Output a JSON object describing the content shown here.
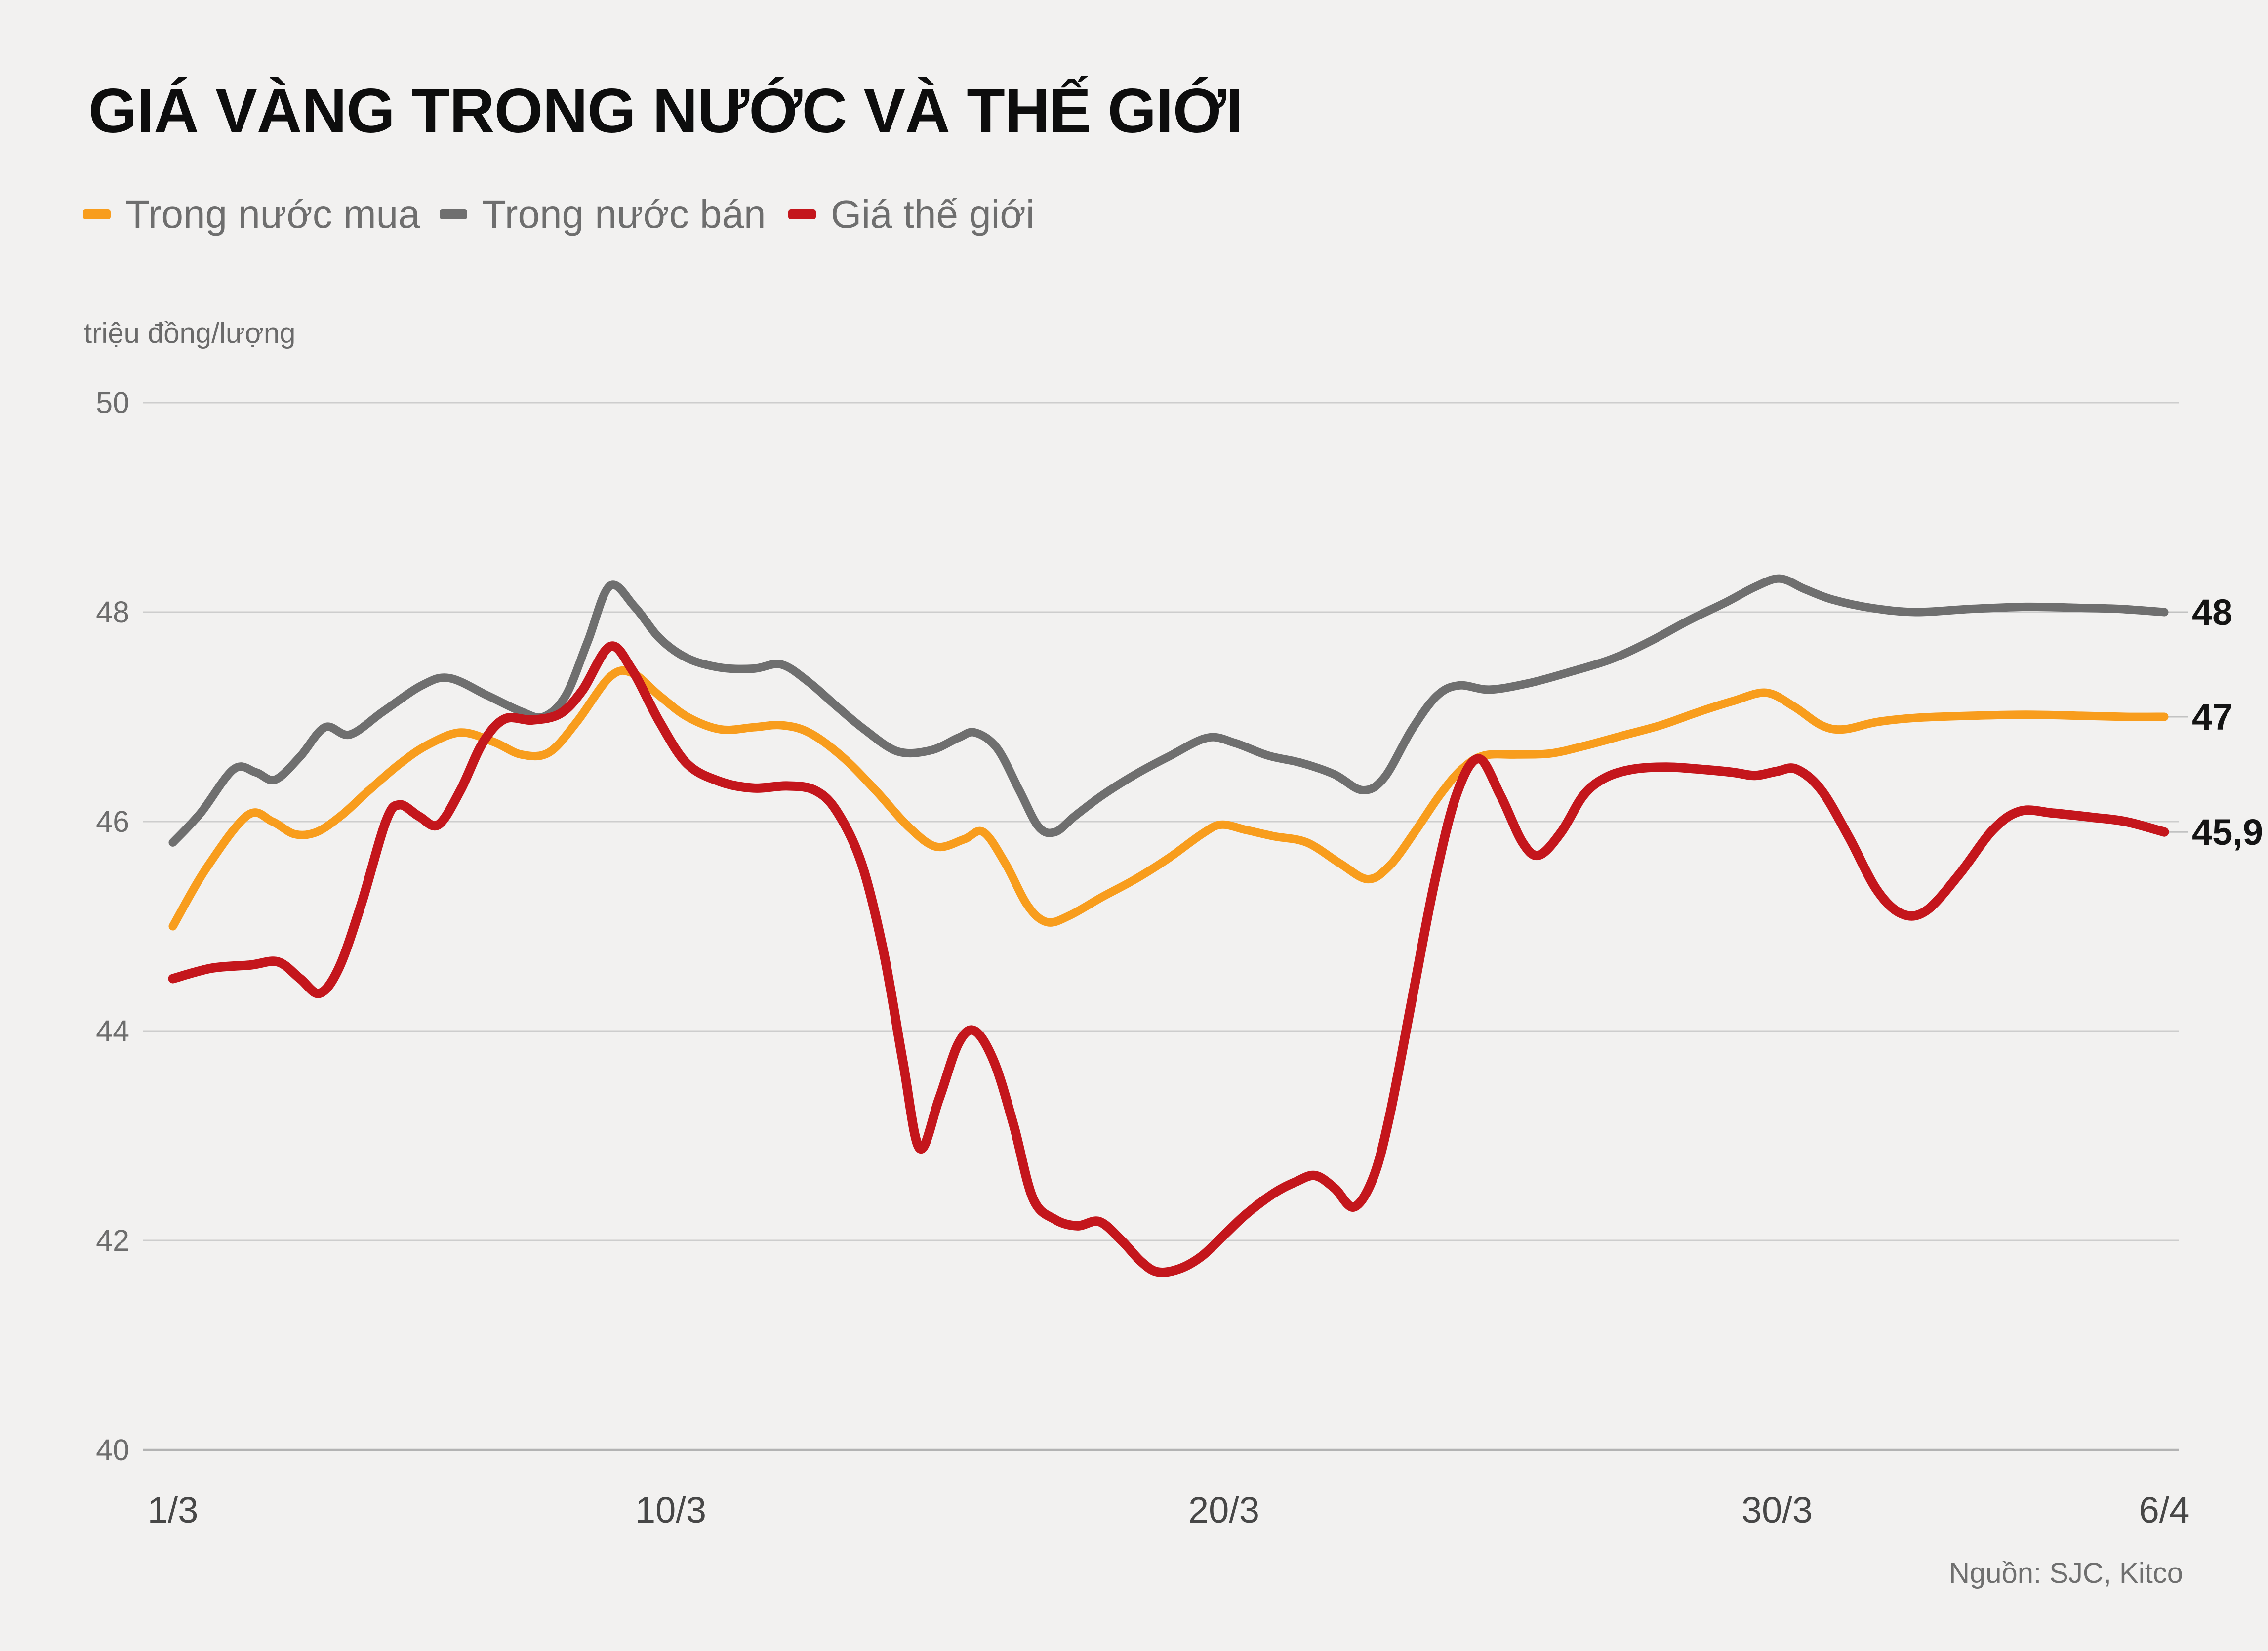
{
  "title": "GIÁ VÀNG TRONG NƯỚC VÀ THẾ GIỚI",
  "y_unit_label": "triệu đồng/lượng",
  "source": "Nguồn: SJC, Kitco",
  "legend": [
    {
      "label": "Trong nước mua",
      "color": "#F89D1D"
    },
    {
      "label": "Trong nước bán",
      "color": "#6F6F6F"
    },
    {
      "label": "Giá thế giới",
      "color": "#C4161C"
    }
  ],
  "chart_data": {
    "type": "line",
    "title": "GIÁ VÀNG TRONG NƯỚC VÀ THẾ GIỚI",
    "ylabel": "triệu đồng/lượng",
    "ylim": [
      40,
      50
    ],
    "xlim_days": [
      0,
      36
    ],
    "grid": true,
    "legend_position": "top-left",
    "y_ticks": [
      40,
      42,
      44,
      46,
      48,
      50
    ],
    "x_ticks": [
      {
        "label": "1/3",
        "day": 0
      },
      {
        "label": "10/3",
        "day": 9
      },
      {
        "label": "20/3",
        "day": 19
      },
      {
        "label": "30/3",
        "day": 29
      },
      {
        "label": "6/4",
        "day": 36
      }
    ],
    "series": [
      {
        "name": "Trong nước bán",
        "key": "trong-nuoc-ban",
        "color": "#6F6F6F",
        "stroke_width": 17,
        "end_label": "48",
        "points": [
          [
            0,
            45.8
          ],
          [
            0.5,
            46.08
          ],
          [
            1.1,
            46.5
          ],
          [
            1.5,
            46.47
          ],
          [
            1.85,
            46.4
          ],
          [
            2.3,
            46.62
          ],
          [
            2.75,
            46.9
          ],
          [
            3.2,
            46.83
          ],
          [
            3.8,
            47.05
          ],
          [
            4.5,
            47.3
          ],
          [
            5.0,
            47.37
          ],
          [
            5.7,
            47.2
          ],
          [
            6.3,
            47.05
          ],
          [
            6.7,
            47.0
          ],
          [
            7.1,
            47.2
          ],
          [
            7.5,
            47.72
          ],
          [
            7.9,
            48.25
          ],
          [
            8.35,
            48.05
          ],
          [
            8.8,
            47.75
          ],
          [
            9.3,
            47.56
          ],
          [
            9.9,
            47.47
          ],
          [
            10.5,
            47.46
          ],
          [
            11.0,
            47.5
          ],
          [
            11.5,
            47.33
          ],
          [
            12.0,
            47.1
          ],
          [
            12.5,
            46.88
          ],
          [
            13.1,
            46.67
          ],
          [
            13.7,
            46.68
          ],
          [
            14.2,
            46.8
          ],
          [
            14.5,
            46.85
          ],
          [
            14.9,
            46.7
          ],
          [
            15.3,
            46.3
          ],
          [
            15.65,
            45.95
          ],
          [
            15.95,
            45.9
          ],
          [
            16.3,
            46.05
          ],
          [
            16.8,
            46.25
          ],
          [
            17.4,
            46.45
          ],
          [
            18.0,
            46.62
          ],
          [
            18.7,
            46.8
          ],
          [
            19.2,
            46.75
          ],
          [
            19.8,
            46.63
          ],
          [
            20.4,
            46.56
          ],
          [
            21.0,
            46.45
          ],
          [
            21.5,
            46.3
          ],
          [
            21.9,
            46.42
          ],
          [
            22.4,
            46.88
          ],
          [
            22.85,
            47.2
          ],
          [
            23.25,
            47.3
          ],
          [
            23.8,
            47.26
          ],
          [
            24.5,
            47.32
          ],
          [
            25.2,
            47.42
          ],
          [
            26.0,
            47.55
          ],
          [
            26.7,
            47.72
          ],
          [
            27.4,
            47.92
          ],
          [
            28.1,
            48.1
          ],
          [
            28.6,
            48.24
          ],
          [
            29.05,
            48.32
          ],
          [
            29.5,
            48.22
          ],
          [
            30.0,
            48.12
          ],
          [
            30.7,
            48.04
          ],
          [
            31.5,
            48.0
          ],
          [
            32.5,
            48.03
          ],
          [
            33.5,
            48.05
          ],
          [
            34.5,
            48.04
          ],
          [
            35.2,
            48.03
          ],
          [
            36,
            48.0
          ]
        ]
      },
      {
        "name": "Trong nước mua",
        "key": "trong-nuoc-mua",
        "color": "#F89D1D",
        "stroke_width": 17,
        "end_label": "47",
        "points": [
          [
            0,
            45.0
          ],
          [
            0.6,
            45.55
          ],
          [
            1.35,
            46.06
          ],
          [
            1.8,
            46.0
          ],
          [
            2.2,
            45.88
          ],
          [
            2.6,
            45.9
          ],
          [
            3.05,
            46.06
          ],
          [
            3.55,
            46.3
          ],
          [
            4.1,
            46.55
          ],
          [
            4.6,
            46.73
          ],
          [
            5.2,
            46.85
          ],
          [
            5.8,
            46.76
          ],
          [
            6.3,
            46.64
          ],
          [
            6.8,
            46.66
          ],
          [
            7.3,
            46.95
          ],
          [
            7.9,
            47.38
          ],
          [
            8.3,
            47.42
          ],
          [
            8.8,
            47.2
          ],
          [
            9.3,
            47.0
          ],
          [
            9.9,
            46.88
          ],
          [
            10.5,
            46.9
          ],
          [
            11.0,
            46.92
          ],
          [
            11.5,
            46.85
          ],
          [
            12.1,
            46.62
          ],
          [
            12.7,
            46.3
          ],
          [
            13.3,
            45.95
          ],
          [
            13.8,
            45.76
          ],
          [
            14.3,
            45.83
          ],
          [
            14.65,
            45.9
          ],
          [
            15.05,
            45.6
          ],
          [
            15.45,
            45.2
          ],
          [
            15.8,
            45.04
          ],
          [
            16.2,
            45.1
          ],
          [
            16.8,
            45.28
          ],
          [
            17.4,
            45.45
          ],
          [
            18.0,
            45.65
          ],
          [
            18.6,
            45.88
          ],
          [
            18.95,
            45.97
          ],
          [
            19.4,
            45.92
          ],
          [
            19.9,
            45.86
          ],
          [
            20.5,
            45.8
          ],
          [
            21.1,
            45.6
          ],
          [
            21.6,
            45.45
          ],
          [
            22.0,
            45.58
          ],
          [
            22.45,
            45.9
          ],
          [
            22.9,
            46.25
          ],
          [
            23.3,
            46.5
          ],
          [
            23.7,
            46.63
          ],
          [
            24.3,
            46.64
          ],
          [
            24.9,
            46.65
          ],
          [
            25.5,
            46.72
          ],
          [
            26.2,
            46.82
          ],
          [
            26.9,
            46.92
          ],
          [
            27.6,
            47.05
          ],
          [
            28.2,
            47.15
          ],
          [
            28.8,
            47.23
          ],
          [
            29.3,
            47.1
          ],
          [
            29.8,
            46.92
          ],
          [
            30.2,
            46.88
          ],
          [
            30.8,
            46.95
          ],
          [
            31.5,
            46.99
          ],
          [
            32.5,
            47.01
          ],
          [
            33.5,
            47.02
          ],
          [
            34.5,
            47.01
          ],
          [
            35.3,
            47.0
          ],
          [
            36,
            47.0
          ]
        ]
      },
      {
        "name": "Giá thế giới",
        "key": "gia-the-gioi",
        "color": "#C4161C",
        "stroke_width": 19,
        "end_label": "45,9",
        "points": [
          [
            0,
            44.5
          ],
          [
            0.7,
            44.6
          ],
          [
            1.4,
            44.63
          ],
          [
            1.9,
            44.66
          ],
          [
            2.3,
            44.5
          ],
          [
            2.65,
            44.36
          ],
          [
            3.0,
            44.6
          ],
          [
            3.4,
            45.2
          ],
          [
            3.85,
            46.0
          ],
          [
            4.1,
            46.16
          ],
          [
            4.45,
            46.05
          ],
          [
            4.8,
            45.97
          ],
          [
            5.2,
            46.3
          ],
          [
            5.6,
            46.75
          ],
          [
            6.0,
            46.98
          ],
          [
            6.5,
            46.97
          ],
          [
            7.0,
            47.03
          ],
          [
            7.4,
            47.25
          ],
          [
            7.9,
            47.67
          ],
          [
            8.3,
            47.45
          ],
          [
            8.8,
            46.95
          ],
          [
            9.3,
            46.55
          ],
          [
            9.9,
            46.38
          ],
          [
            10.5,
            46.32
          ],
          [
            11.1,
            46.34
          ],
          [
            11.6,
            46.3
          ],
          [
            12.0,
            46.1
          ],
          [
            12.45,
            45.6
          ],
          [
            12.85,
            44.75
          ],
          [
            13.2,
            43.7
          ],
          [
            13.5,
            42.88
          ],
          [
            13.85,
            43.35
          ],
          [
            14.2,
            43.88
          ],
          [
            14.5,
            44.0
          ],
          [
            14.85,
            43.7
          ],
          [
            15.2,
            43.1
          ],
          [
            15.55,
            42.4
          ],
          [
            15.95,
            42.2
          ],
          [
            16.35,
            42.14
          ],
          [
            16.75,
            42.18
          ],
          [
            17.15,
            42.0
          ],
          [
            17.5,
            41.8
          ],
          [
            17.8,
            41.7
          ],
          [
            18.2,
            41.73
          ],
          [
            18.6,
            41.85
          ],
          [
            19.0,
            42.05
          ],
          [
            19.4,
            42.25
          ],
          [
            19.9,
            42.45
          ],
          [
            20.3,
            42.56
          ],
          [
            20.65,
            42.62
          ],
          [
            21.0,
            42.5
          ],
          [
            21.35,
            42.32
          ],
          [
            21.7,
            42.6
          ],
          [
            22.0,
            43.2
          ],
          [
            22.4,
            44.3
          ],
          [
            22.8,
            45.4
          ],
          [
            23.2,
            46.25
          ],
          [
            23.6,
            46.6
          ],
          [
            24.0,
            46.25
          ],
          [
            24.4,
            45.8
          ],
          [
            24.7,
            45.68
          ],
          [
            25.1,
            45.9
          ],
          [
            25.5,
            46.25
          ],
          [
            25.9,
            46.42
          ],
          [
            26.4,
            46.5
          ],
          [
            27.0,
            46.52
          ],
          [
            27.6,
            46.5
          ],
          [
            28.2,
            46.47
          ],
          [
            28.6,
            46.44
          ],
          [
            29.0,
            46.48
          ],
          [
            29.35,
            46.5
          ],
          [
            29.8,
            46.3
          ],
          [
            30.3,
            45.85
          ],
          [
            30.8,
            45.35
          ],
          [
            31.25,
            45.12
          ],
          [
            31.7,
            45.15
          ],
          [
            32.3,
            45.5
          ],
          [
            32.9,
            45.92
          ],
          [
            33.4,
            46.1
          ],
          [
            34.0,
            46.08
          ],
          [
            34.7,
            46.04
          ],
          [
            35.3,
            46.0
          ],
          [
            36,
            45.9
          ]
        ]
      }
    ]
  }
}
